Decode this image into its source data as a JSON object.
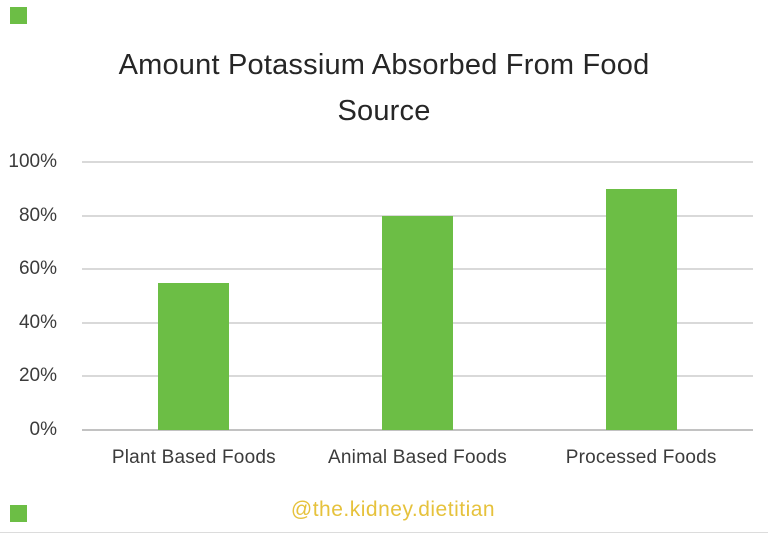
{
  "page": {
    "background": "#ffffff"
  },
  "decorations": {
    "corner_square_color": "#6CBE45",
    "positions": [
      "top-left",
      "bottom-left"
    ]
  },
  "title": {
    "line1": "Amount Potassium Absorbed From Food",
    "line2": "Source"
  },
  "footer": {
    "handle": "@the.kidney.dietitian",
    "color": "#E6C23C"
  },
  "chart_data": {
    "type": "bar",
    "title": "Amount Potassium Absorbed From Food Source",
    "categories": [
      "Plant Based Foods",
      "Animal Based Foods",
      "Processed Foods"
    ],
    "values": [
      55,
      80,
      90
    ],
    "unit": "%",
    "xlabel": "",
    "ylabel": "",
    "ylim": [
      0,
      100
    ],
    "yticks": [
      0,
      20,
      40,
      60,
      80,
      100
    ],
    "ytick_labels": [
      "0%",
      "20%",
      "40%",
      "60%",
      "80%",
      "100%"
    ],
    "grid": true,
    "legend": false,
    "bar_color": "#6CBE45",
    "gridline_color": "#d9d9d9",
    "axisline_color": "#c2c2c2"
  }
}
